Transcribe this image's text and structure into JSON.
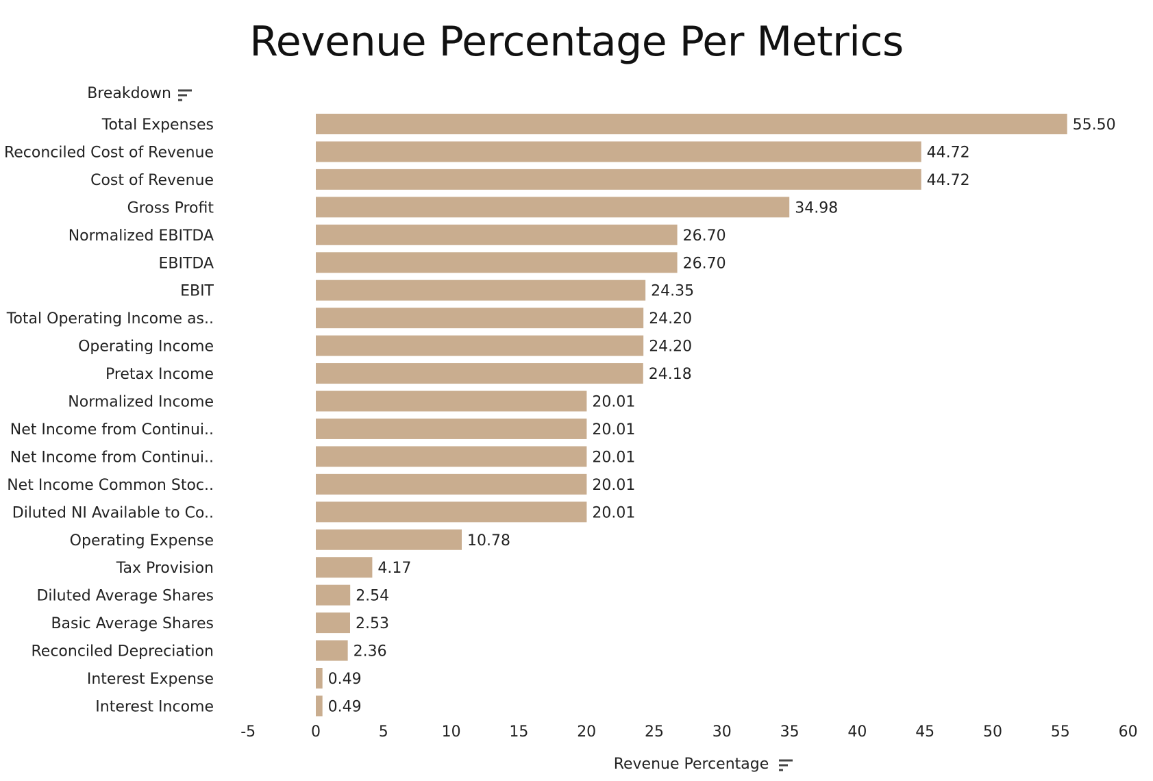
{
  "chart_data": {
    "type": "bar",
    "orientation": "horizontal",
    "title": "Revenue Percentage Per Metrics",
    "category_header": "Breakdown",
    "xlabel": "Revenue Percentage",
    "ylabel": "",
    "xlim": [
      -5,
      60
    ],
    "xticks": [
      -5,
      0,
      5,
      10,
      15,
      20,
      25,
      30,
      35,
      40,
      45,
      50,
      55,
      60
    ],
    "grid": false,
    "bar_color": "#C9AD8F",
    "categories": [
      "Total Expenses",
      "Reconciled Cost of Revenue",
      "Cost of Revenue",
      "Gross Profit",
      "Normalized EBITDA",
      "EBITDA",
      "EBIT",
      "Total Operating Income as..",
      "Operating Income",
      "Pretax Income",
      "Normalized Income",
      "Net Income from Continui..",
      "Net Income from Continui..",
      "Net Income Common Stoc..",
      "Diluted NI Available to Co..",
      "Operating Expense",
      "Tax Provision",
      "Diluted Average Shares",
      "Basic Average Shares",
      "Reconciled Depreciation",
      "Interest Expense",
      "Interest Income"
    ],
    "values": [
      55.5,
      44.72,
      44.72,
      34.98,
      26.7,
      26.7,
      24.35,
      24.2,
      24.2,
      24.18,
      20.01,
      20.01,
      20.01,
      20.01,
      20.01,
      10.78,
      4.17,
      2.54,
      2.53,
      2.36,
      0.49,
      0.49
    ],
    "value_labels": [
      "55.50",
      "44.72",
      "44.72",
      "34.98",
      "26.70",
      "26.70",
      "24.35",
      "24.20",
      "24.20",
      "24.18",
      "20.01",
      "20.01",
      "20.01",
      "20.01",
      "20.01",
      "10.78",
      "4.17",
      "2.54",
      "2.53",
      "2.36",
      "0.49",
      "0.49"
    ]
  }
}
